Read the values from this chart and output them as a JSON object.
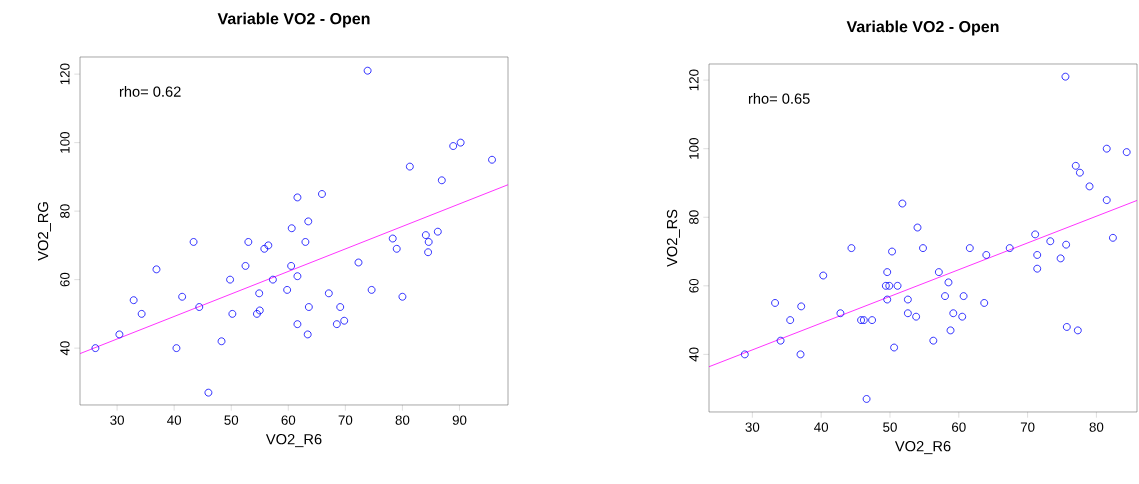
{
  "chart_data": [
    {
      "type": "scatter",
      "title": "Variable VO2 - Open",
      "xlabel": "VO2_R6",
      "ylabel": "VO2_RG",
      "annotations": [
        "rho= 0.62"
      ],
      "xlim": [
        23.5,
        98.5
      ],
      "ylim": [
        23.4,
        125
      ],
      "xticks": [
        30,
        40,
        50,
        60,
        70,
        80,
        90
      ],
      "yticks": [
        40,
        60,
        80,
        100,
        120
      ],
      "series": [
        {
          "marker": "circle",
          "color": "#0000ff",
          "x": [
            26.2,
            30.4,
            32.9,
            34.3,
            36.9,
            40.4,
            41.4,
            43.4,
            44.4,
            46.0,
            48.3,
            49.8,
            50.2,
            52.5,
            53.0,
            54.5,
            54.9,
            55.0,
            55.8,
            56.5,
            57.3,
            59.8,
            60.5,
            60.6,
            61.6,
            61.6,
            61.6,
            63.0,
            63.5,
            63.4,
            63.6,
            65.9,
            67.1,
            68.5,
            69.1,
            69.8,
            72.3,
            73.9,
            74.6,
            78.3,
            79.0,
            80.0,
            81.3,
            84.1,
            84.6,
            84.5,
            86.2,
            86.9,
            88.9,
            90.2,
            95.7
          ],
          "values": [
            40,
            44,
            54,
            50,
            63,
            40,
            55,
            71,
            52,
            27,
            42,
            60,
            50,
            64,
            71,
            50,
            56,
            51,
            69,
            70,
            60,
            57,
            64,
            75,
            61,
            84,
            47,
            71,
            77,
            44,
            52,
            85,
            56,
            47,
            52,
            48,
            65,
            121,
            57,
            72,
            69,
            55,
            93,
            73,
            71,
            68,
            74,
            89,
            99,
            100,
            95
          ]
        },
        {
          "type": "line",
          "marker": "none",
          "color": "#ff00ff",
          "x": [
            23.5,
            98.5
          ],
          "values": [
            38.4,
            87.7
          ]
        }
      ]
    },
    {
      "type": "scatter",
      "title": "Variable VO2 - Open",
      "xlabel": "VO2_R6",
      "ylabel": "VO2_RS",
      "annotations": [
        "rho= 0.65"
      ],
      "xlim": [
        23.7,
        85.9
      ],
      "ylim": [
        23.2,
        124.7
      ],
      "xticks": [
        30,
        40,
        50,
        60,
        70,
        80
      ],
      "yticks": [
        40,
        60,
        80,
        100,
        120
      ],
      "series": [
        {
          "marker": "circle",
          "color": "#0000ff",
          "x": [
            28.9,
            33.3,
            34.1,
            35.5,
            37.0,
            37.1,
            40.3,
            42.8,
            44.4,
            45.8,
            46.2,
            46.6,
            47.4,
            49.6,
            49.4,
            49.9,
            49.6,
            50.3,
            50.6,
            51.1,
            51.8,
            52.6,
            52.6,
            53.8,
            54.0,
            54.8,
            56.3,
            57.1,
            58.0,
            58.5,
            58.8,
            59.2,
            60.5,
            60.7,
            61.6,
            63.7,
            64.0,
            67.4,
            71.1,
            71.4,
            71.4,
            73.3,
            74.8,
            75.5,
            75.6,
            75.7,
            77.0,
            77.3,
            77.6,
            79.0,
            81.5,
            81.5,
            82.4,
            84.4
          ],
          "values": [
            40,
            55,
            44,
            50,
            40,
            54,
            63,
            52,
            71,
            50,
            50,
            27,
            50,
            64,
            60,
            60,
            56,
            70,
            42,
            60,
            84,
            56,
            52,
            51,
            77,
            71,
            44,
            64,
            57,
            61,
            47,
            52,
            51,
            57,
            71,
            55,
            69,
            71,
            75,
            69,
            65,
            73,
            68,
            121,
            72,
            48,
            95,
            47,
            93,
            89,
            100,
            85,
            74,
            99
          ]
        },
        {
          "type": "line",
          "marker": "none",
          "color": "#ff00ff",
          "x": [
            23.7,
            85.9
          ],
          "values": [
            36.4,
            84.9
          ]
        }
      ]
    }
  ]
}
